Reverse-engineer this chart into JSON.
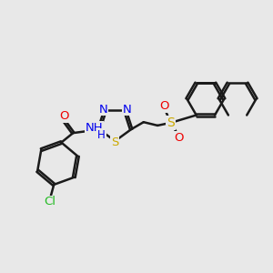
{
  "bg_color": "#e8e8e8",
  "bond_color": "#1a1a1a",
  "bond_width": 1.8,
  "atom_colors": {
    "N": "#0000ee",
    "O": "#ee0000",
    "S": "#ccaa00",
    "Cl": "#22bb22",
    "C": "#1a1a1a"
  },
  "font_size": 9.5
}
